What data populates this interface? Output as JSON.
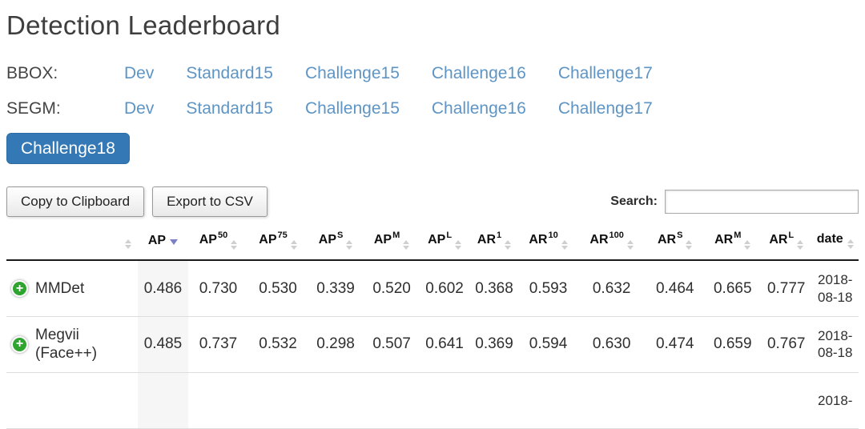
{
  "page": {
    "title": "Detection Leaderboard"
  },
  "nav": {
    "rows": [
      {
        "label": "BBOX:",
        "links": [
          "Dev",
          "Standard15",
          "Challenge15",
          "Challenge16",
          "Challenge17"
        ]
      },
      {
        "label": "SEGM:",
        "links": [
          "Dev",
          "Standard15",
          "Challenge15",
          "Challenge16",
          "Challenge17"
        ]
      }
    ],
    "active_button": "Challenge18"
  },
  "toolbar": {
    "copy_label": "Copy to Clipboard",
    "export_label": "Export to CSV",
    "search_label": "Search:",
    "search_value": ""
  },
  "table": {
    "columns": [
      {
        "base": "",
        "sup": "",
        "sorted": false
      },
      {
        "base": "AP",
        "sup": "",
        "sorted": true
      },
      {
        "base": "AP",
        "sup": "50",
        "sorted": false
      },
      {
        "base": "AP",
        "sup": "75",
        "sorted": false
      },
      {
        "base": "AP",
        "sup": "S",
        "sorted": false
      },
      {
        "base": "AP",
        "sup": "M",
        "sorted": false
      },
      {
        "base": "AP",
        "sup": "L",
        "sorted": false
      },
      {
        "base": "AR",
        "sup": "1",
        "sorted": false
      },
      {
        "base": "AR",
        "sup": "10",
        "sorted": false
      },
      {
        "base": "AR",
        "sup": "100",
        "sorted": false
      },
      {
        "base": "AR",
        "sup": "S",
        "sorted": false
      },
      {
        "base": "AR",
        "sup": "M",
        "sorted": false
      },
      {
        "base": "AR",
        "sup": "L",
        "sorted": false
      },
      {
        "base": "date",
        "sup": "",
        "sorted": false
      }
    ],
    "rows": [
      {
        "name": "MMDet",
        "values": [
          "0.486",
          "0.730",
          "0.530",
          "0.339",
          "0.520",
          "0.602",
          "0.368",
          "0.593",
          "0.632",
          "0.464",
          "0.665",
          "0.777"
        ],
        "date": "2018-08-18"
      },
      {
        "name": "Megvii (Face++)",
        "values": [
          "0.485",
          "0.737",
          "0.532",
          "0.298",
          "0.507",
          "0.641",
          "0.369",
          "0.594",
          "0.630",
          "0.474",
          "0.659",
          "0.767"
        ],
        "date": "2018-08-18"
      },
      {
        "name": "",
        "values": [
          "",
          "",
          "",
          "",
          "",
          "",
          "",
          "",
          "",
          "",
          "",
          ""
        ],
        "date": "2018-"
      }
    ]
  },
  "colors": {
    "link_blue": "#5e95c5",
    "active_button_blue": "#3478b6",
    "expand_green": "#2fa42f",
    "sort_active_arrow": "#7b80c9",
    "header_border": "#1a1a1a"
  },
  "icons": {
    "expand_row": "plus-circle-icon",
    "sort_unsorted": "sort-both-icon",
    "sort_descending": "sort-desc-icon"
  }
}
